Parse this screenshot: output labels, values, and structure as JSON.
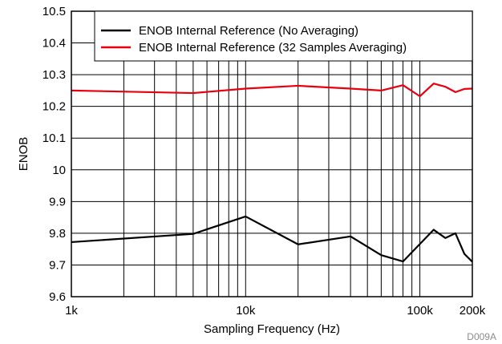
{
  "chart_data": {
    "type": "line",
    "xscale": "log",
    "xlabel": "Sampling Frequency (Hz)",
    "ylabel": "ENOB",
    "xlim": [
      1000,
      200000
    ],
    "ylim": [
      9.6,
      10.5
    ],
    "x_tick_labels": [
      {
        "value": 1000,
        "label": "1k"
      },
      {
        "value": 10000,
        "label": "10k"
      },
      {
        "value": 100000,
        "label": "100k"
      },
      {
        "value": 200000,
        "label": "200k"
      }
    ],
    "y_ticks": [
      {
        "value": 9.6,
        "label": "9.6"
      },
      {
        "value": 9.7,
        "label": "9.7"
      },
      {
        "value": 9.8,
        "label": "9.8"
      },
      {
        "value": 9.9,
        "label": "9.9"
      },
      {
        "value": 10.0,
        "label": "10"
      },
      {
        "value": 10.1,
        "label": "10.1"
      },
      {
        "value": 10.2,
        "label": "10.2"
      },
      {
        "value": 10.3,
        "label": "10.3"
      },
      {
        "value": 10.4,
        "label": "10.4"
      },
      {
        "value": 10.5,
        "label": "10.5"
      }
    ],
    "x_minor_gridlines": [
      2000,
      3000,
      4000,
      5000,
      6000,
      7000,
      8000,
      9000,
      10000,
      20000,
      30000,
      40000,
      50000,
      60000,
      70000,
      80000,
      90000,
      100000
    ],
    "grid": true,
    "legend_position": "top-right",
    "series": [
      {
        "name": "ENOB Internal Reference (No Averaging)",
        "color": "#000000",
        "x": [
          1000,
          5000,
          10000,
          20000,
          40000,
          60000,
          80000,
          120000,
          140000,
          160000,
          180000,
          200000
        ],
        "y": [
          9.772,
          9.798,
          9.853,
          9.765,
          9.79,
          9.731,
          9.711,
          9.811,
          9.785,
          9.8,
          9.735,
          9.71
        ]
      },
      {
        "name": "ENOB Internal Reference (32 Samples Averaging)",
        "color": "#e8000d",
        "x": [
          1000,
          5000,
          10000,
          20000,
          40000,
          60000,
          80000,
          100000,
          120000,
          140000,
          160000,
          180000,
          200000
        ],
        "y": [
          10.25,
          10.242,
          10.256,
          10.265,
          10.256,
          10.25,
          10.267,
          10.232,
          10.272,
          10.262,
          10.245,
          10.255,
          10.256
        ]
      }
    ],
    "figure_id": "D009A"
  }
}
